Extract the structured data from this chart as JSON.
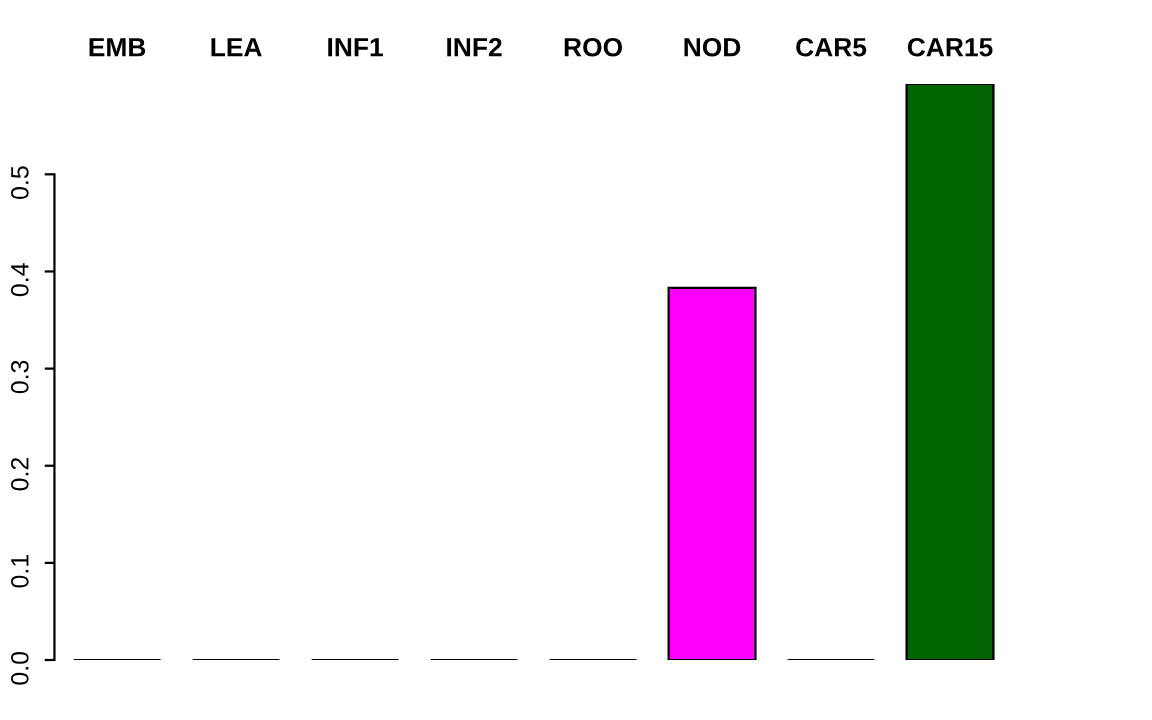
{
  "chart_data": {
    "type": "bar",
    "categories": [
      "EMB",
      "LEA",
      "INF1",
      "INF2",
      "ROO",
      "NOD",
      "CAR5",
      "CAR15"
    ],
    "values": [
      0,
      0,
      0,
      0,
      0,
      0.383,
      0,
      0.593
    ],
    "colors": [
      "#000000",
      "#000000",
      "#000000",
      "#000000",
      "#000000",
      "#ff00ff",
      "#000000",
      "#006400"
    ],
    "ylim": [
      0,
      0.593
    ],
    "yticks": [
      {
        "value": 0,
        "label": "0.0"
      },
      0.1,
      0.2,
      0.3,
      0.4,
      0.5
    ],
    "grid": false
  }
}
